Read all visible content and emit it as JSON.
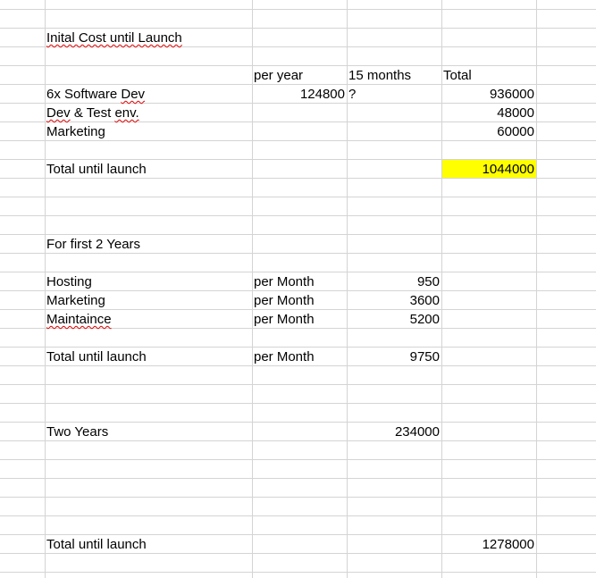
{
  "sheet": {
    "colors": {
      "gridline": "#d4d4d4",
      "highlight": "#ffff00",
      "spellcheck": "#e00000"
    },
    "section1": {
      "title": "Inital Cost until Launch",
      "headers": {
        "per_year": "per year",
        "months": "15 months",
        "total": "Total"
      },
      "rows": [
        {
          "label": "6x Software Dev",
          "per_year": "124800",
          "months": "?",
          "total": "936000"
        },
        {
          "label": "Dev & Test env.",
          "total": "48000"
        },
        {
          "label": "Marketing",
          "total": "60000"
        }
      ],
      "total_row": {
        "label": "Total until launch",
        "total": "1044000"
      }
    },
    "section2": {
      "title": "For first 2 Years",
      "rows": [
        {
          "label": "Hosting",
          "unit": "per Month",
          "amount": "950"
        },
        {
          "label": "Marketing",
          "unit": "per Month",
          "amount": "3600"
        },
        {
          "label": "Maintaince",
          "unit": "per Month",
          "amount": "5200"
        }
      ],
      "total_row": {
        "label": "Total until launch",
        "unit": "per Month",
        "amount": "9750"
      },
      "two_years": {
        "label": "Two Years",
        "amount": "234000"
      }
    },
    "grand_total": {
      "label": "Total until launch",
      "total": "1278000"
    }
  }
}
